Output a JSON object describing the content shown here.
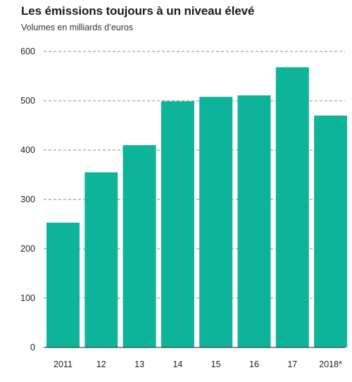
{
  "header": {
    "title": "Les émissions toujours à un niveau élevé",
    "subtitle": "Volumes en milliards d’euros"
  },
  "chart_data": {
    "type": "bar",
    "title": "Les émissions toujours à un niveau élevé",
    "subtitle": "Volumes en milliards d’euros",
    "xlabel": "",
    "ylabel": "",
    "categories": [
      "2011",
      "12",
      "13",
      "14",
      "15",
      "16",
      "17",
      "2018*"
    ],
    "values": [
      253,
      355,
      410,
      499,
      508,
      511,
      568,
      470
    ],
    "ylim": [
      0,
      600
    ],
    "yticks": [
      0,
      100,
      200,
      300,
      400,
      500,
      600
    ],
    "grid": "horizontal dashed",
    "legend": "none",
    "bar_color": "#0eb49a",
    "grid_color": "#888888"
  }
}
